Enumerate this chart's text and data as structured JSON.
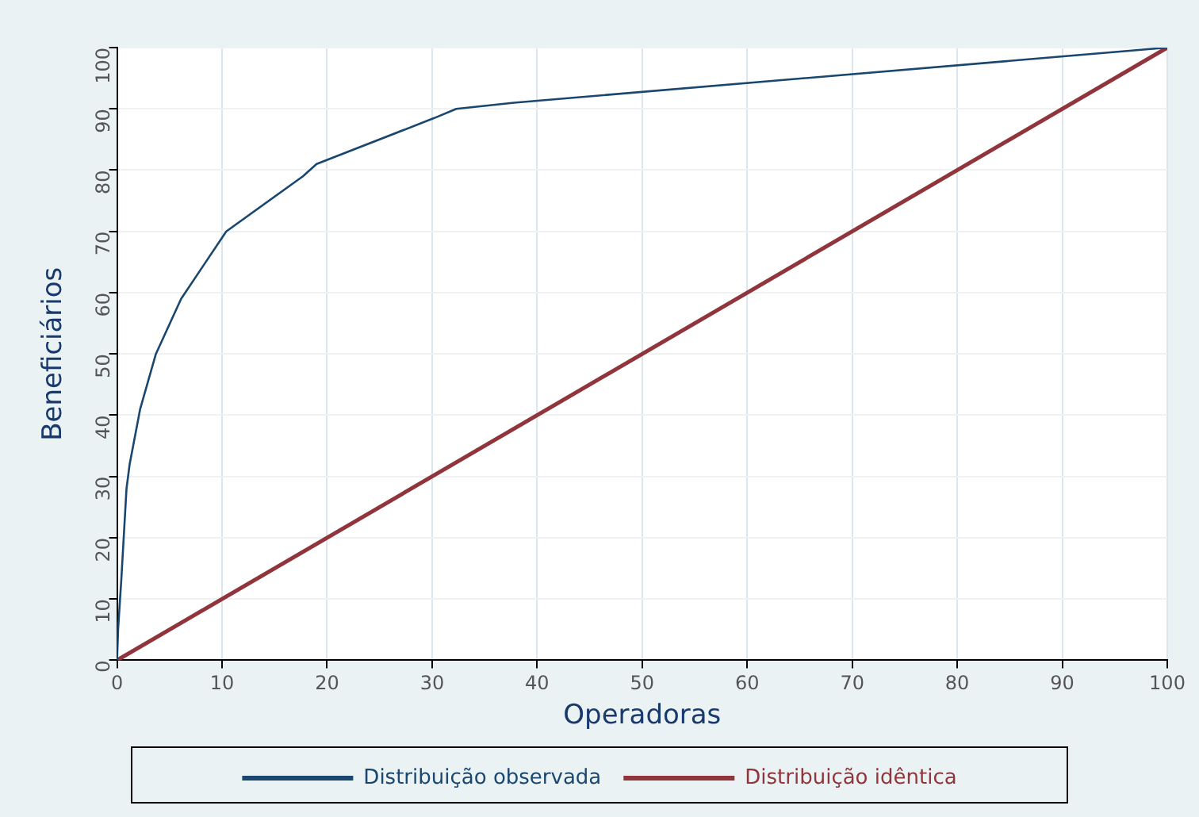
{
  "chart_data": {
    "type": "line",
    "xlabel": "Operadoras",
    "ylabel": "Beneficiários",
    "xlim": [
      0,
      100
    ],
    "ylim": [
      0,
      100
    ],
    "xticks": [
      0,
      10,
      20,
      30,
      40,
      50,
      60,
      70,
      80,
      90,
      100
    ],
    "yticks": [
      0,
      10,
      20,
      30,
      40,
      50,
      60,
      70,
      80,
      90,
      100
    ],
    "grid": true,
    "legend": "bottom",
    "marker": "none",
    "line_style": "solid",
    "series": [
      {
        "name": "Distribuição observada",
        "color": "#1a476f",
        "x": [
          0,
          0.1,
          0.4,
          0.9,
          1.2,
          2.2,
          3.7,
          6.1,
          10.4,
          17.7,
          19,
          30.2,
          32.3,
          37.8,
          100
        ],
        "values": [
          0,
          5,
          13,
          28,
          32,
          41,
          50,
          59,
          70,
          79,
          81,
          88.5,
          90,
          91,
          100
        ]
      },
      {
        "name": "Distribuição idêntica",
        "color": "#90353b",
        "x": [
          0,
          100
        ],
        "values": [
          0,
          100
        ]
      }
    ]
  }
}
